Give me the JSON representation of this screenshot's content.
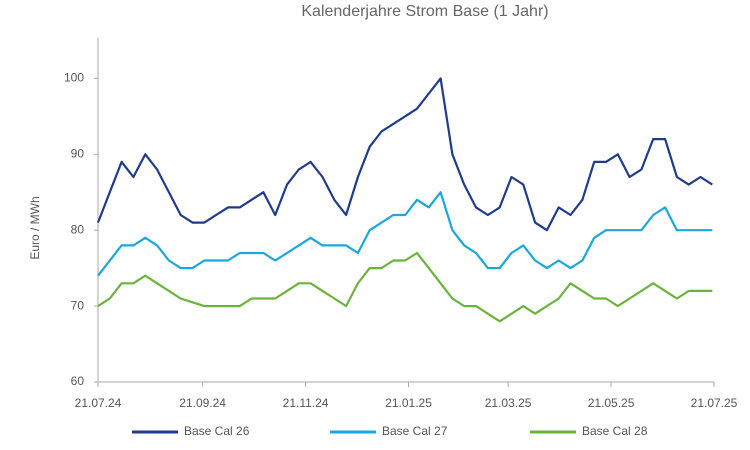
{
  "chart_data": {
    "type": "line",
    "title": "Kalenderjahre Strom Base (1 Jahr)",
    "y_label": "Euro / MWh",
    "x": [
      "21.07.24",
      "28.07.24",
      "04.08.24",
      "11.08.24",
      "18.08.24",
      "25.08.24",
      "01.09.24",
      "08.09.24",
      "15.09.24",
      "22.09.24",
      "29.09.24",
      "06.10.24",
      "13.10.24",
      "20.10.24",
      "27.10.24",
      "03.11.24",
      "10.11.24",
      "17.11.24",
      "24.11.24",
      "01.12.24",
      "08.12.24",
      "15.12.24",
      "22.12.24",
      "29.12.24",
      "05.01.25",
      "12.01.25",
      "19.01.25",
      "26.01.25",
      "02.02.25",
      "09.02.25",
      "16.02.25",
      "23.02.25",
      "02.03.25",
      "09.03.25",
      "16.03.25",
      "23.03.25",
      "30.03.25",
      "06.04.25",
      "13.04.25",
      "20.04.25",
      "27.04.25",
      "04.05.25",
      "11.05.25",
      "18.05.25",
      "25.05.25",
      "01.06.25",
      "08.06.25",
      "15.06.25",
      "22.06.25",
      "29.06.25",
      "06.07.25",
      "13.07.25",
      "20.07.25"
    ],
    "series": [
      {
        "name": "Base Cal 26",
        "color": "#1f3b8c",
        "values": [
          81,
          85,
          89,
          87,
          90,
          88,
          85,
          82,
          81,
          81,
          82,
          83,
          83,
          84,
          85,
          82,
          86,
          88,
          89,
          87,
          84,
          82,
          87,
          91,
          93,
          94,
          95,
          96,
          98,
          100,
          90,
          86,
          83,
          82,
          83,
          87,
          86,
          81,
          80,
          83,
          82,
          84,
          89,
          89,
          90,
          87,
          88,
          92,
          92,
          87,
          86,
          87,
          86
        ]
      },
      {
        "name": "Base Cal 27",
        "color": "#1aa7e0",
        "values": [
          74,
          76,
          78,
          78,
          79,
          78,
          76,
          75,
          75,
          76,
          76,
          76,
          77,
          77,
          77,
          76,
          77,
          78,
          79,
          78,
          78,
          78,
          77,
          80,
          81,
          82,
          82,
          84,
          83,
          85,
          80,
          78,
          77,
          75,
          75,
          77,
          78,
          76,
          75,
          76,
          75,
          76,
          79,
          80,
          80,
          80,
          80,
          82,
          83,
          80,
          80,
          80,
          80
        ]
      },
      {
        "name": "Base Cal 28",
        "color": "#6ab43e",
        "values": [
          70,
          71,
          73,
          73,
          74,
          73,
          72,
          71,
          70.5,
          70,
          70,
          70,
          70,
          71,
          71,
          71,
          72,
          73,
          73,
          72,
          71,
          70,
          73,
          75,
          75,
          76,
          76,
          77,
          75,
          73,
          71,
          70,
          70,
          69,
          68,
          69,
          70,
          69,
          70,
          71,
          73,
          72,
          71,
          71,
          70,
          71,
          72,
          73,
          72,
          71,
          72,
          72,
          72
        ]
      }
    ],
    "xlim": [
      "21.07.24",
      "21.07.25"
    ],
    "xticks": [
      "21.07.24",
      "21.09.24",
      "21.11.24",
      "21.01.25",
      "21.03.25",
      "21.05.25",
      "21.07.25"
    ],
    "ylim": [
      60,
      104
    ],
    "yticks": [
      60,
      70,
      80,
      90,
      100
    ],
    "legend": "bottom"
  }
}
